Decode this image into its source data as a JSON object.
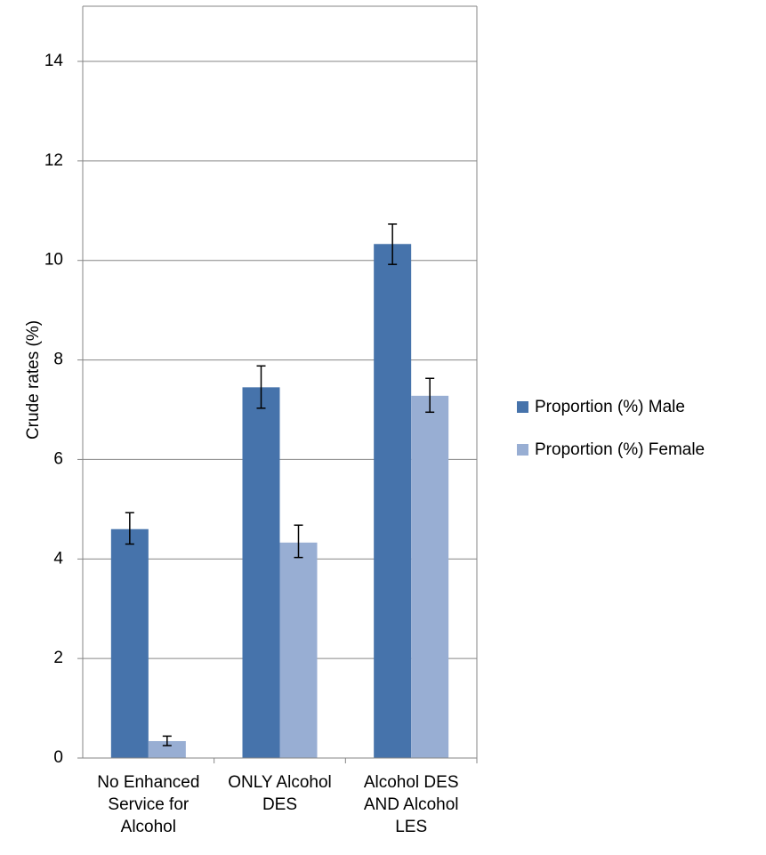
{
  "chart_data": {
    "type": "bar",
    "title": "",
    "xlabel": "",
    "ylabel": "Crude rates (%)",
    "ylim": [
      0,
      14
    ],
    "yticks": [
      0,
      2,
      4,
      6,
      8,
      10,
      12,
      14
    ],
    "grid": true,
    "legend_position": "right",
    "categories": [
      [
        "No Enhanced",
        "Service for",
        "Alcohol"
      ],
      [
        "ONLY Alcohol",
        "DES"
      ],
      [
        "Alcohol DES",
        "AND Alcohol",
        "LES"
      ]
    ],
    "series": [
      {
        "name": "Proportion (%) Male",
        "color": "#4673AB",
        "values": [
          4.6,
          7.45,
          10.33
        ],
        "error_low": [
          4.3,
          7.03,
          9.92
        ],
        "error_high": [
          4.93,
          7.88,
          10.73
        ]
      },
      {
        "name": "Proportion (%) Female",
        "color": "#98AED3",
        "values": [
          0.34,
          4.33,
          7.28
        ],
        "error_low": [
          0.25,
          4.03,
          6.95
        ],
        "error_high": [
          0.44,
          4.68,
          7.63
        ]
      }
    ]
  }
}
